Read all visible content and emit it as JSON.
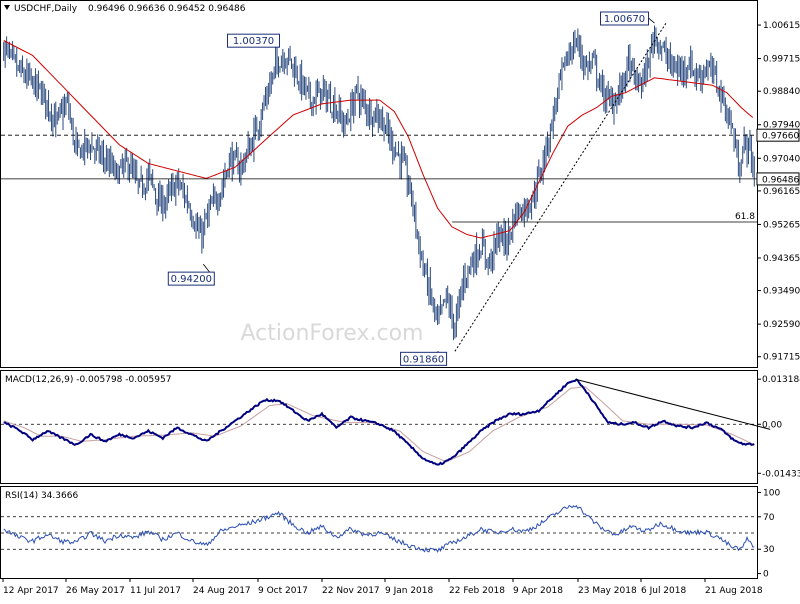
{
  "header": {
    "symbol": "USDCHF,Daily",
    "ohlc": "0.96496 0.96636 0.96452 0.96486"
  },
  "watermark": "ActionForex.com",
  "colors": {
    "price_bars": "#2b4a7f",
    "sma": "#d00000",
    "macd": "#000080",
    "signal": "#c8a0a0",
    "rsi": "#2b4fb3",
    "box_border": "#1a2e7a",
    "text": "#000000"
  },
  "chart_data": [
    {
      "type": "candlestick",
      "title": "USDCHF,Daily",
      "y_axis_ticks": [
        "1.00615",
        "0.99715",
        "0.98840",
        "0.97940",
        "0.97040",
        "0.96165",
        "0.95265",
        "0.94365",
        "0.93490",
        "0.92590",
        "0.91715"
      ],
      "ylim": [
        0.9152,
        1.0118
      ],
      "x_tick_labels": [
        "12 Apr 2017",
        "26 May 2017",
        "11 Jul 2017",
        "24 Aug 2017",
        "9 Oct 2017",
        "22 Nov 2017",
        "9 Jan 2018",
        "22 Feb 2018",
        "9 Apr 2018",
        "23 May 2018",
        "6 Jul 2018",
        "21 Aug 2018"
      ],
      "close_anchors": [
        [
          0,
          1.0
        ],
        [
          10,
          0.994
        ],
        [
          20,
          0.9905
        ],
        [
          28,
          0.987
        ],
        [
          36,
          0.98
        ],
        [
          44,
          0.985
        ],
        [
          50,
          0.972
        ],
        [
          60,
          0.974
        ],
        [
          70,
          0.97
        ],
        [
          78,
          0.966
        ],
        [
          86,
          0.969
        ],
        [
          94,
          0.962
        ],
        [
          100,
          0.966
        ],
        [
          108,
          0.958
        ],
        [
          114,
          0.96
        ],
        [
          120,
          0.964
        ],
        [
          128,
          0.958
        ],
        [
          136,
          0.949
        ],
        [
          142,
          0.956
        ],
        [
          150,
          0.962
        ],
        [
          156,
          0.97
        ],
        [
          164,
          0.968
        ],
        [
          172,
          0.975
        ],
        [
          180,
          0.985
        ],
        [
          184,
          0.99
        ],
        [
          190,
          0.997
        ],
        [
          196,
          0.998
        ],
        [
          204,
          0.992
        ],
        [
          212,
          0.986
        ],
        [
          220,
          0.988
        ],
        [
          228,
          0.985
        ],
        [
          236,
          0.979
        ],
        [
          244,
          0.988
        ],
        [
          252,
          0.983
        ],
        [
          260,
          0.982
        ],
        [
          268,
          0.975
        ],
        [
          276,
          0.969
        ],
        [
          282,
          0.96
        ],
        [
          288,
          0.945
        ],
        [
          294,
          0.935
        ],
        [
          300,
          0.926
        ],
        [
          306,
          0.933
        ],
        [
          312,
          0.925
        ],
        [
          318,
          0.938
        ],
        [
          324,
          0.943
        ],
        [
          330,
          0.947
        ],
        [
          336,
          0.942
        ],
        [
          342,
          0.95
        ],
        [
          348,
          0.948
        ],
        [
          354,
          0.956
        ],
        [
          360,
          0.957
        ],
        [
          366,
          0.96
        ],
        [
          372,
          0.968
        ],
        [
          378,
          0.978
        ],
        [
          384,
          0.99
        ],
        [
          390,
          0.998
        ],
        [
          396,
          1.002
        ],
        [
          402,
          0.995
        ],
        [
          408,
          0.996
        ],
        [
          414,
          0.988
        ],
        [
          420,
          0.985
        ],
        [
          426,
          0.988
        ],
        [
          432,
          0.996
        ],
        [
          438,
          0.99
        ],
        [
          444,
          0.993
        ],
        [
          450,
          1.004
        ],
        [
          456,
          0.999
        ],
        [
          462,
          0.995
        ],
        [
          468,
          0.994
        ],
        [
          474,
          0.996
        ],
        [
          480,
          0.992
        ],
        [
          486,
          0.995
        ],
        [
          492,
          0.992
        ],
        [
          498,
          0.985
        ],
        [
          504,
          0.978
        ],
        [
          508,
          0.968
        ],
        [
          512,
          0.974
        ],
        [
          516,
          0.973
        ],
        [
          519,
          0.9649
        ]
      ],
      "sma": {
        "period_label": "",
        "anchors": [
          [
            0,
            1.002
          ],
          [
            20,
            0.998
          ],
          [
            40,
            0.99
          ],
          [
            60,
            0.982
          ],
          [
            80,
            0.974
          ],
          [
            100,
            0.969
          ],
          [
            120,
            0.967
          ],
          [
            140,
            0.965
          ],
          [
            160,
            0.968
          ],
          [
            180,
            0.975
          ],
          [
            200,
            0.982
          ],
          [
            220,
            0.985
          ],
          [
            240,
            0.986
          ],
          [
            260,
            0.986
          ],
          [
            270,
            0.983
          ],
          [
            280,
            0.976
          ],
          [
            290,
            0.966
          ],
          [
            300,
            0.957
          ],
          [
            310,
            0.952
          ],
          [
            320,
            0.95
          ],
          [
            330,
            0.949
          ],
          [
            340,
            0.95
          ],
          [
            350,
            0.951
          ],
          [
            360,
            0.956
          ],
          [
            370,
            0.964
          ],
          [
            380,
            0.972
          ],
          [
            390,
            0.979
          ],
          [
            400,
            0.982
          ],
          [
            410,
            0.984
          ],
          [
            420,
            0.987
          ],
          [
            430,
            0.988
          ],
          [
            440,
            0.99
          ],
          [
            450,
            0.992
          ],
          [
            460,
            0.9915
          ],
          [
            470,
            0.991
          ],
          [
            480,
            0.9905
          ],
          [
            490,
            0.99
          ],
          [
            500,
            0.988
          ],
          [
            510,
            0.984
          ],
          [
            519,
            0.981
          ]
        ]
      },
      "hlines": [
        {
          "value": 0.9766,
          "style": "dashed",
          "label": "0.97660"
        },
        {
          "value": 0.96486,
          "style": "solid",
          "label": "0.96486"
        },
        {
          "value": 0.9533,
          "style": "solid",
          "label": "61.8",
          "from_index": 310
        }
      ],
      "trendline": {
        "from": [
          312,
          0.9186
        ],
        "to": [
          458,
          1.0067
        ],
        "style": "dotted"
      },
      "annotations": [
        {
          "label": "1.00370",
          "index": 190,
          "value": 1.0037
        },
        {
          "label": "0.94200",
          "index": 138,
          "value": 0.942
        },
        {
          "label": "1.00670",
          "index": 450,
          "value": 1.0067
        },
        {
          "label": "0.91860",
          "index": 300,
          "value": 0.9186
        }
      ]
    },
    {
      "type": "line",
      "title": "MACD(12,26,9) -0.005798 -0.005957",
      "y_axis_ticks": [
        "0.013184",
        "0.00",
        "-0.014339"
      ],
      "ylim": [
        -0.0163,
        0.0147
      ],
      "zero_line": 0.0,
      "series": [
        {
          "role": "macd",
          "anchors": [
            [
              0,
              0.0005
            ],
            [
              10,
              -0.0015
            ],
            [
              20,
              -0.0045
            ],
            [
              30,
              -0.002
            ],
            [
              40,
              -0.004
            ],
            [
              50,
              -0.006
            ],
            [
              60,
              -0.003
            ],
            [
              70,
              -0.005
            ],
            [
              80,
              -0.003
            ],
            [
              90,
              -0.004
            ],
            [
              100,
              -0.002
            ],
            [
              110,
              -0.004
            ],
            [
              120,
              -0.001
            ],
            [
              130,
              -0.003
            ],
            [
              140,
              -0.005
            ],
            [
              150,
              -0.002
            ],
            [
              160,
              0.001
            ],
            [
              170,
              0.004
            ],
            [
              180,
              0.007
            ],
            [
              190,
              0.007
            ],
            [
              200,
              0.004
            ],
            [
              210,
              0.001
            ],
            [
              220,
              0.003
            ],
            [
              230,
              -0.001
            ],
            [
              240,
              0.002
            ],
            [
              250,
              0.001
            ],
            [
              260,
              0.0
            ],
            [
              270,
              -0.002
            ],
            [
              280,
              -0.006
            ],
            [
              290,
              -0.01
            ],
            [
              300,
              -0.012
            ],
            [
              310,
              -0.01
            ],
            [
              320,
              -0.006
            ],
            [
              330,
              -0.002
            ],
            [
              340,
              0.001
            ],
            [
              350,
              0.003
            ],
            [
              360,
              0.003
            ],
            [
              370,
              0.004
            ],
            [
              380,
              0.008
            ],
            [
              390,
              0.012
            ],
            [
              396,
              0.0131
            ],
            [
              404,
              0.009
            ],
            [
              412,
              0.004
            ],
            [
              418,
              0.0005
            ],
            [
              426,
              0.0
            ],
            [
              436,
              0.0005
            ],
            [
              446,
              -0.001
            ],
            [
              456,
              0.001
            ],
            [
              466,
              -0.0005
            ],
            [
              476,
              -0.001
            ],
            [
              486,
              0.0005
            ],
            [
              496,
              -0.0015
            ],
            [
              506,
              -0.005
            ],
            [
              512,
              -0.0058
            ],
            [
              519,
              -0.0058
            ]
          ]
        },
        {
          "role": "signal",
          "anchors": [
            [
              0,
              0.001
            ],
            [
              14,
              -0.001
            ],
            [
              26,
              -0.0035
            ],
            [
              40,
              -0.0035
            ],
            [
              54,
              -0.005
            ],
            [
              70,
              -0.0045
            ],
            [
              90,
              -0.0035
            ],
            [
              110,
              -0.0032
            ],
            [
              130,
              -0.0025
            ],
            [
              146,
              -0.0035
            ],
            [
              164,
              -0.0005
            ],
            [
              184,
              0.0055
            ],
            [
              196,
              0.006
            ],
            [
              214,
              0.0025
            ],
            [
              236,
              0.0005
            ],
            [
              254,
              0.0005
            ],
            [
              274,
              -0.002
            ],
            [
              290,
              -0.008
            ],
            [
              306,
              -0.011
            ],
            [
              322,
              -0.008
            ],
            [
              338,
              -0.002
            ],
            [
              356,
              0.002
            ],
            [
              376,
              0.005
            ],
            [
              392,
              0.0105
            ],
            [
              402,
              0.011
            ],
            [
              414,
              0.0065
            ],
            [
              428,
              0.001
            ],
            [
              446,
              0.0
            ],
            [
              466,
              0.0
            ],
            [
              486,
              -0.0002
            ],
            [
              504,
              -0.003
            ],
            [
              519,
              -0.006
            ]
          ]
        }
      ],
      "trendline": {
        "from": [
          396,
          0.0131
        ],
        "to": [
          530,
          -0.0015
        ]
      }
    },
    {
      "type": "line",
      "title": "RSI(14) 34.3666",
      "y_axis_ticks": [
        "100",
        "70",
        "30",
        "0"
      ],
      "ylim": [
        -3,
        103
      ],
      "guides": [
        70,
        50,
        30
      ],
      "series": [
        {
          "role": "rsi",
          "anchors": [
            [
              0,
              55
            ],
            [
              10,
              45
            ],
            [
              20,
              40
            ],
            [
              30,
              48
            ],
            [
              40,
              40
            ],
            [
              50,
              38
            ],
            [
              60,
              50
            ],
            [
              70,
              40
            ],
            [
              80,
              48
            ],
            [
              90,
              44
            ],
            [
              100,
              52
            ],
            [
              110,
              42
            ],
            [
              120,
              50
            ],
            [
              130,
              40
            ],
            [
              140,
              35
            ],
            [
              150,
              52
            ],
            [
              160,
              58
            ],
            [
              170,
              62
            ],
            [
              180,
              68
            ],
            [
              190,
              75
            ],
            [
              200,
              60
            ],
            [
              210,
              50
            ],
            [
              220,
              58
            ],
            [
              230,
              45
            ],
            [
              240,
              55
            ],
            [
              250,
              48
            ],
            [
              260,
              50
            ],
            [
              270,
              42
            ],
            [
              280,
              35
            ],
            [
              290,
              30
            ],
            [
              300,
              28
            ],
            [
              310,
              38
            ],
            [
              320,
              45
            ],
            [
              330,
              55
            ],
            [
              340,
              50
            ],
            [
              350,
              55
            ],
            [
              360,
              52
            ],
            [
              370,
              60
            ],
            [
              380,
              72
            ],
            [
              390,
              82
            ],
            [
              396,
              85
            ],
            [
              404,
              70
            ],
            [
              414,
              55
            ],
            [
              424,
              48
            ],
            [
              434,
              58
            ],
            [
              444,
              52
            ],
            [
              454,
              62
            ],
            [
              464,
              55
            ],
            [
              474,
              50
            ],
            [
              484,
              52
            ],
            [
              494,
              45
            ],
            [
              504,
              32
            ],
            [
              510,
              30
            ],
            [
              514,
              42
            ],
            [
              519,
              34
            ]
          ]
        }
      ]
    }
  ]
}
